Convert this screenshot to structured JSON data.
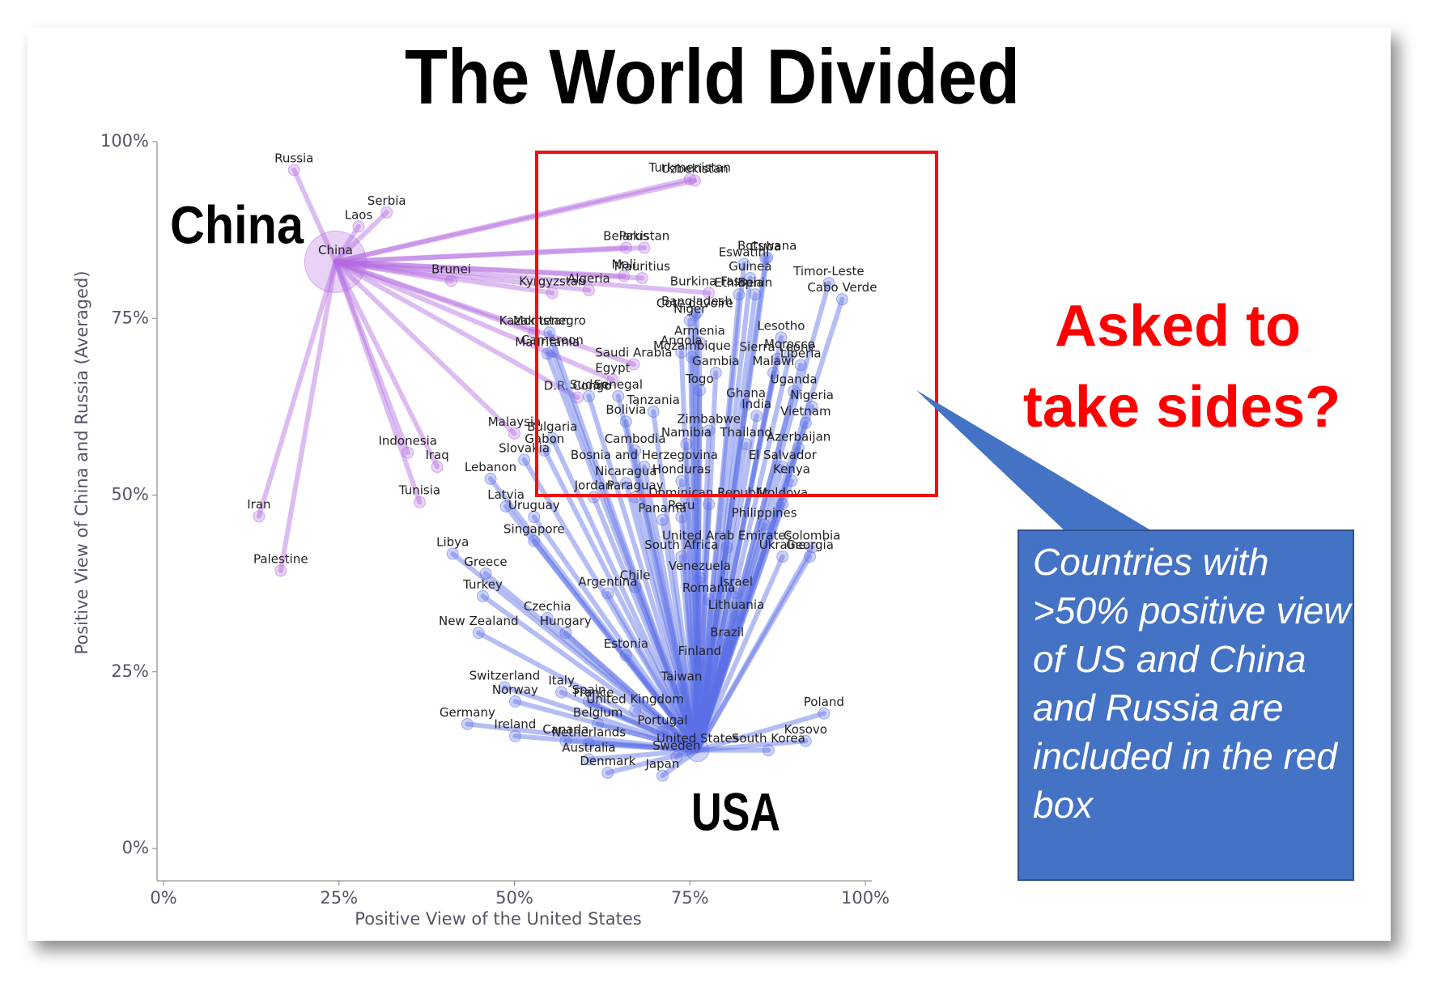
{
  "chart_data": {
    "type": "scatter",
    "title": "The World Divided",
    "xlabel": "Positive View of the United States",
    "ylabel": "Positive View of China and Russia (Averaged)",
    "xlim": [
      0,
      100
    ],
    "ylim": [
      0,
      100
    ],
    "xticks": [
      {
        "value": 0,
        "label": "0%"
      },
      {
        "value": 25,
        "label": "25%"
      },
      {
        "value": 50,
        "label": "50%"
      },
      {
        "value": 75,
        "label": "75%"
      },
      {
        "value": 100,
        "label": "100%"
      }
    ],
    "yticks": [
      {
        "value": 0,
        "label": "0%"
      },
      {
        "value": 25,
        "label": "25%"
      },
      {
        "value": 50,
        "label": "50%"
      },
      {
        "value": 75,
        "label": "75%"
      },
      {
        "value": 100,
        "label": "100%"
      }
    ],
    "annotations": {
      "china": "China",
      "usa": "USA",
      "question": [
        "Asked to",
        "take sides?"
      ],
      "callout": [
        "Countries with",
        ">50% positive view",
        "of US and China",
        "and Russia are",
        "included in the red",
        "box"
      ]
    },
    "series": [
      {
        "color": "#b36ae0",
        "countries": [
          "China",
          "Russia",
          "Serbia",
          "Laos",
          "Brunei",
          "Turkmenistan",
          "Uzbekistan",
          "Pakistan",
          "Belarus",
          "Mali",
          "Mauritius",
          "Algeria",
          "Kyrgyzstan",
          "Kazakhstan",
          "Indonesia",
          "Iraq",
          "Iran",
          "Palestine",
          "Burkina Faso",
          "Egypt",
          "D.R. Congo",
          "Saudi Arabia",
          "Malaysia",
          "Tunisia"
        ],
        "x": [
          24.5,
          18.6,
          31.8,
          27.8,
          41,
          75,
          75.7,
          68.5,
          65.9,
          65.6,
          68.2,
          60.6,
          55.4,
          52.8,
          34.8,
          39,
          13.6,
          16.7,
          77.7,
          64,
          59,
          67,
          50,
          36.5
        ],
        "y": [
          83,
          96,
          90,
          88,
          80.3,
          94.7,
          94.5,
          85,
          85,
          81,
          80.7,
          79,
          78.6,
          73,
          56,
          54,
          47,
          39.3,
          78.6,
          66.3,
          63.8,
          68.5,
          58.7,
          49
        ]
      },
      {
        "color": "#5a6ee6",
        "countries": [
          "United States",
          "Botswana",
          "Cuba",
          "Eswatini",
          "Guinea",
          "Benin",
          "Ethiopia",
          "Timor-Leste",
          "Cabo Verde",
          "Bangladesh",
          "Cote d'Ivoire",
          "Niger",
          "Armenia",
          "Lesotho",
          "Morocco",
          "Sierra Leone",
          "Mozambique",
          "Angola",
          "Liberia",
          "Gambia",
          "Malawi",
          "Uganda",
          "Togo",
          "Ghana",
          "Nigeria",
          "India",
          "Vietnam",
          "Zimbabwe",
          "Tanzania",
          "Senegal",
          "Sudan",
          "Thailand",
          "Azerbaijan",
          "Namibia",
          "Bolivia",
          "Bulgaria",
          "Cambodia",
          "Gabon",
          "Slovakia",
          "Bosnia and Herzegovina",
          "El Salvador",
          "Nicaragua",
          "Kenya",
          "Honduras",
          "Lebanon",
          "Latvia",
          "Paraguay",
          "Jordan",
          "Dominican Republic",
          "Moldova",
          "Uruguay",
          "Panama",
          "Peru",
          "Philippines",
          "Singapore",
          "Libya",
          "United Arab Emirates",
          "Colombia",
          "South Africa",
          "Greece",
          "Ukraine",
          "Georgia",
          "Chile",
          "Venezuela",
          "Turkey",
          "Argentina",
          "Israel",
          "Romania",
          "Czechia",
          "Lithuania",
          "Brazil",
          "New Zealand",
          "Hungary",
          "Estonia",
          "Finland",
          "Switzerland",
          "Italy",
          "Taiwan",
          "Spain",
          "Norway",
          "France",
          "United Kingdom",
          "Belgium",
          "Germany",
          "Poland",
          "Portugal",
          "Kosovo",
          "Ireland",
          "Canada",
          "Netherlands",
          "South Korea",
          "Australia",
          "Sweden",
          "Denmark",
          "Japan",
          "Montenegro",
          "Mauritania",
          "Cameroon"
        ],
        "x": [
          76.1,
          86,
          85.8,
          82.7,
          83.6,
          84.3,
          82,
          94.8,
          96.7,
          76,
          75.7,
          75,
          76.4,
          88,
          89.2,
          87.5,
          75.3,
          73.8,
          90.8,
          78.7,
          86.9,
          89.8,
          76.4,
          83,
          92.4,
          84.5,
          91.5,
          77.7,
          69.8,
          64.8,
          60.6,
          83,
          90.5,
          74.5,
          65.9,
          55.4,
          67.2,
          54.3,
          51.4,
          68.5,
          88.2,
          65.9,
          89.5,
          73.8,
          46.6,
          48.8,
          67.2,
          61.3,
          77.7,
          88.2,
          52.8,
          71.1,
          73.8,
          85.6,
          52.8,
          41.2,
          80.3,
          92.4,
          73.8,
          45.9,
          88.2,
          92.1,
          67.2,
          76.4,
          45.5,
          63.3,
          81.6,
          77.7,
          54.7,
          81.6,
          80.3,
          44.9,
          57.3,
          65.9,
          76.4,
          48.6,
          56.7,
          73.8,
          60.6,
          50.1,
          61.3,
          67.2,
          61.9,
          43.3,
          94.1,
          71.1,
          91.5,
          50.1,
          57.3,
          60.6,
          86.2,
          60.6,
          73.1,
          63.3,
          71.1,
          55,
          54.7,
          55.4
        ],
        "y": [
          13.9,
          83.6,
          83.5,
          82.7,
          80.7,
          78.4,
          78.4,
          80,
          77.7,
          75.8,
          75.5,
          74.7,
          71.6,
          72.3,
          69.7,
          69.3,
          69.5,
          70.2,
          68.4,
          67.3,
          67.3,
          64.7,
          64.8,
          62.8,
          62.5,
          61.2,
          60.2,
          59.1,
          61.8,
          64,
          64,
          57.2,
          56.6,
          57.2,
          60.4,
          58,
          56.3,
          56.3,
          55,
          54,
          54,
          51.7,
          52,
          52,
          52.3,
          48.4,
          49.7,
          49.7,
          48.7,
          48.7,
          46.9,
          46.5,
          46.9,
          45.8,
          43.5,
          41.7,
          42.6,
          42.6,
          41.3,
          38.9,
          41.3,
          41.3,
          37,
          38.3,
          35.7,
          36.1,
          36.1,
          35.2,
          32.6,
          32.8,
          28.9,
          30.5,
          30.5,
          27.3,
          26.3,
          22.8,
          22.1,
          22.7,
          20.8,
          20.8,
          20.4,
          19.5,
          17.6,
          17.6,
          19.1,
          16.5,
          15.2,
          15.9,
          15.2,
          14.8,
          13.9,
          12.6,
          12.9,
          10.7,
          10.3,
          73,
          70,
          70.3
        ]
      }
    ]
  }
}
